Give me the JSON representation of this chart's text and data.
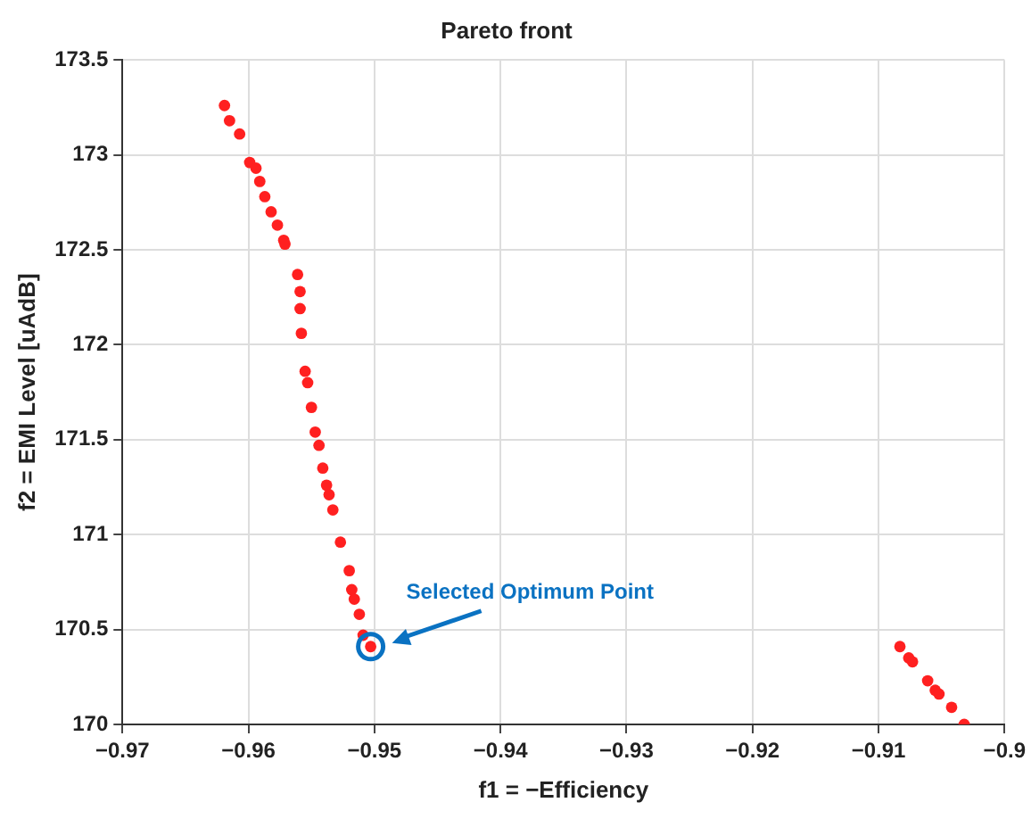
{
  "chart_data": {
    "type": "scatter",
    "title": "Pareto front",
    "xlabel": "f1 = −Efficiency",
    "ylabel": "f2 = EMI Level [uAdB]",
    "series": [
      {
        "color": "#ff2020",
        "x": [
          -0.9619,
          -0.9615,
          -0.9607,
          -0.9599,
          -0.9594,
          -0.9591,
          -0.9587,
          -0.9582,
          -0.9577,
          -0.9572,
          -0.9571,
          -0.9561,
          -0.9559,
          -0.9559,
          -0.9558,
          -0.9555,
          -0.9553,
          -0.955,
          -0.9547,
          -0.9544,
          -0.9541,
          -0.9538,
          -0.9536,
          -0.9533,
          -0.9527,
          -0.952,
          -0.9518,
          -0.9516,
          -0.9512,
          -0.9509,
          -0.9503,
          -0.9083,
          -0.9076,
          -0.9073,
          -0.9061,
          -0.9055,
          -0.9052,
          -0.9042,
          -0.9032
        ],
        "values": [
          173.26,
          173.18,
          173.11,
          172.96,
          172.93,
          172.86,
          172.78,
          172.7,
          172.63,
          172.55,
          172.53,
          172.37,
          172.28,
          172.19,
          172.06,
          171.86,
          171.8,
          171.67,
          171.54,
          171.47,
          171.35,
          171.26,
          171.21,
          171.13,
          170.96,
          170.81,
          170.71,
          170.66,
          170.58,
          170.47,
          170.41,
          170.41,
          170.35,
          170.33,
          170.23,
          170.18,
          170.16,
          170.09,
          170.0
        ]
      }
    ],
    "xlim": [
      -0.97,
      -0.9
    ],
    "xticks": [
      {
        "value": -0.97,
        "label": "−0.97"
      },
      {
        "value": -0.96,
        "label": "−0.96"
      },
      {
        "value": -0.95,
        "label": "−0.95"
      },
      {
        "value": -0.94,
        "label": "−0.94"
      },
      {
        "value": -0.93,
        "label": "−0.93"
      },
      {
        "value": -0.92,
        "label": "−0.92"
      },
      {
        "value": -0.91,
        "label": "−0.91"
      },
      {
        "value": -0.9,
        "label": "−0.9"
      }
    ],
    "ylim": [
      170,
      173.5
    ],
    "yticks": [
      170,
      170.5,
      171,
      171.5,
      172,
      172.5,
      173,
      173.5
    ],
    "annotations": [
      {
        "text": "Selected Optimum Point",
        "x": -0.9503,
        "y": 170.41
      }
    ],
    "grid": true,
    "legend": false,
    "marker": "circle"
  }
}
